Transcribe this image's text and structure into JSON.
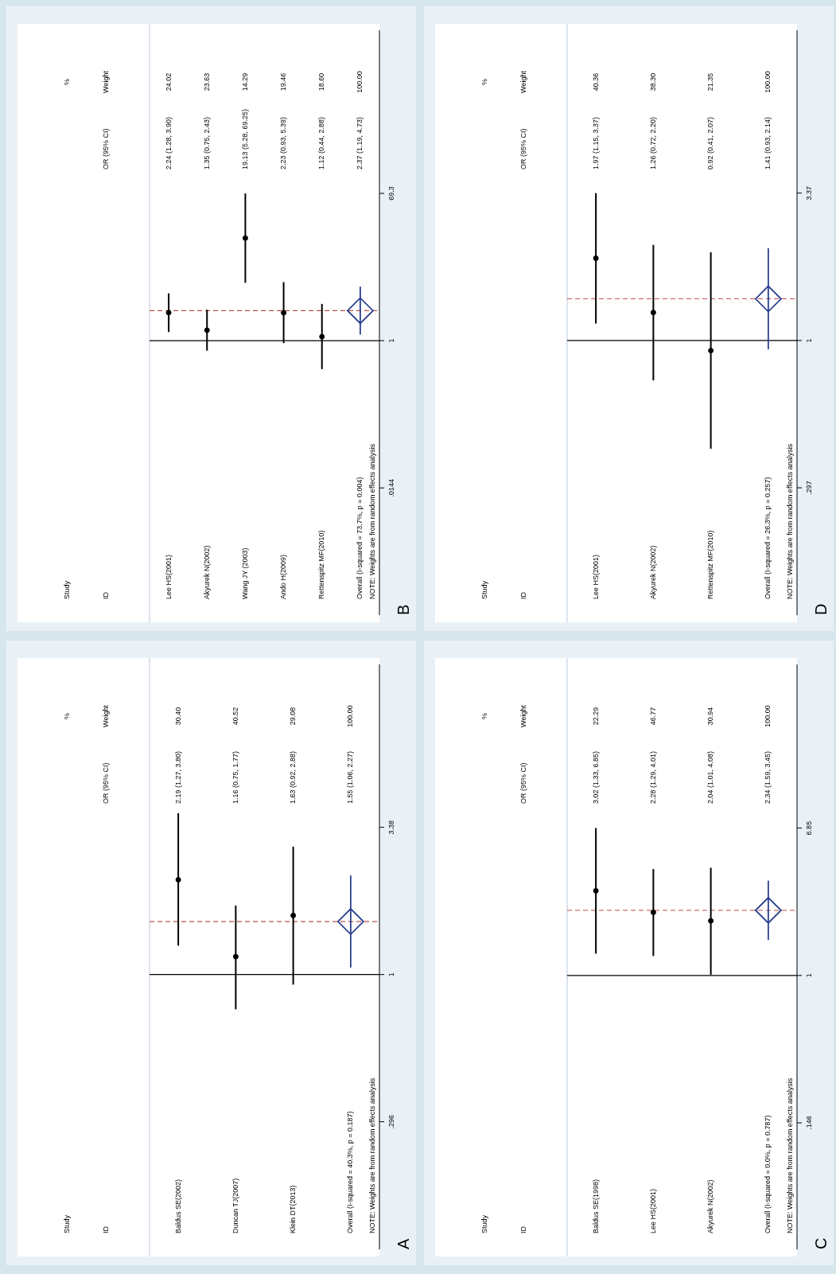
{
  "chart_data": [
    {
      "type": "scatter",
      "title": "A",
      "xlabel": "Study ID",
      "categories": [
        "Baldus SE(2002)",
        "Duncan TJ(2007)",
        "Klein DT(2013)",
        "Overall (I-squared = 40.3%, p = 0.187)"
      ],
      "series": [
        {
          "marker": "circle",
          "color": "#000000",
          "values": [
            2.19,
            1.16,
            1.63,
            null
          ],
          "errors": [
            [
              1.27,
              3.8
            ],
            [
              0.75,
              1.77
            ],
            [
              0.92,
              2.88
            ],
            null
          ]
        },
        {
          "marker": "diamond",
          "color": "#2b3f8f",
          "values": [
            null,
            null,
            null,
            1.55
          ],
          "errors": [
            null,
            null,
            null,
            [
              1.06,
              2.27
            ]
          ]
        }
      ],
      "log": "y",
      "ylim": [
        0.103,
        13.0
      ],
      "yticks": [
        {
          "value": 0.296,
          "label": ".296"
        },
        1,
        3.38
      ],
      "ref_lines": [
        {
          "axis": "y",
          "value": 1,
          "color": "#000000",
          "line_style": "solid"
        },
        {
          "axis": "y",
          "value": 1.55,
          "color": "#c0504d",
          "line_style": "dashed"
        }
      ],
      "annotations": [
        "OR (95% CI)",
        "% Weight",
        "NOTE: Weights are from random effects analysis",
        "2.19 (1.27, 3.80)",
        "1.16 (0.75, 1.77)",
        "1.63 (0.92, 2.88)",
        "1.55 (1.06, 2.27)",
        "30.40",
        "40.52",
        "29.08",
        "100.00"
      ]
    },
    {
      "type": "scatter",
      "title": "B",
      "xlabel": "Study ID",
      "categories": [
        "Lee HS(2001)",
        "Akyurek N(2002)",
        "Wang JY (2003)",
        "Ando H(2009)",
        "Rettenspitz MF(2010)",
        "Overall (I-squared = 73.7%, p = 0.004)"
      ],
      "series": [
        {
          "marker": "circle",
          "color": "#000000",
          "values": [
            2.24,
            1.35,
            19.13,
            2.23,
            1.12,
            null
          ],
          "errors": [
            [
              1.28,
              3.9
            ],
            [
              0.75,
              2.43
            ],
            [
              5.28,
              69.25
            ],
            [
              0.93,
              5.39
            ],
            [
              0.44,
              2.88
            ],
            null
          ]
        },
        {
          "marker": "diamond",
          "color": "#2b3f8f",
          "values": [
            null,
            null,
            null,
            null,
            null,
            2.37
          ],
          "errors": [
            null,
            null,
            null,
            null,
            null,
            [
              1.19,
              4.73
            ]
          ]
        }
      ],
      "log": "y",
      "ylim": [
        0.00037,
        7600
      ],
      "yticks": [
        {
          "value": 0.0144,
          "label": ".0144"
        },
        1,
        69.3
      ],
      "ref_lines": [
        {
          "axis": "y",
          "value": 1,
          "color": "#000000",
          "line_style": "solid"
        },
        {
          "axis": "y",
          "value": 2.37,
          "color": "#c0504d",
          "line_style": "dashed"
        }
      ],
      "annotations": [
        "OR (95% CI)",
        "% Weight",
        "NOTE: Weights are from random effects analysis",
        "2.24 (1.28, 3.90)",
        "1.35 (0.75, 2.43)",
        "19.13 (5.28, 69.25)",
        "2.23 (0.93, 5.39)",
        "1.12 (0.44, 2.88)",
        "2.37 (1.19, 4.73)",
        "24.02",
        "23.63",
        "14.29",
        "19.46",
        "18.60",
        "100.00"
      ]
    },
    {
      "type": "scatter",
      "title": "C",
      "xlabel": "Study ID",
      "categories": [
        "Baldus SE(1998)",
        "Lee HS(2001)",
        "Akyurek N(2002)",
        "Overall (I-squared = 0.0%, p = 0.787)"
      ],
      "series": [
        {
          "marker": "circle",
          "color": "#000000",
          "values": [
            3.02,
            2.28,
            2.04,
            null
          ],
          "errors": [
            [
              1.33,
              6.85
            ],
            [
              1.29,
              4.01
            ],
            [
              1.01,
              4.08
            ],
            null
          ]
        },
        {
          "marker": "diamond",
          "color": "#2b3f8f",
          "values": [
            null,
            null,
            null,
            2.34
          ],
          "errors": [
            null,
            null,
            null,
            [
              1.59,
              3.45
            ]
          ]
        }
      ],
      "log": "y",
      "ylim": [
        0.028,
        58
      ],
      "yticks": [
        {
          "value": 0.146,
          "label": ".146"
        },
        1,
        6.85
      ],
      "ref_lines": [
        {
          "axis": "y",
          "value": 1,
          "color": "#000000",
          "line_style": "solid"
        },
        {
          "axis": "y",
          "value": 2.34,
          "color": "#c0504d",
          "line_style": "dashed"
        }
      ],
      "annotations": [
        "OR (95% CI)",
        "% Weight",
        "NOTE: Weights are from random effects analysis",
        "3.02 (1.33, 6.85)",
        "2.28 (1.29, 4.01)",
        "2.04 (1.01, 4.08)",
        "2.34 (1.59, 3.45)",
        "22.29",
        "46.77",
        "30.94",
        "100.00"
      ]
    },
    {
      "type": "scatter",
      "title": "D",
      "xlabel": "Study ID",
      "categories": [
        "Lee HS(2001)",
        "Akyurek N(2002)",
        "Rettenspitz MF(2010)",
        "Overall (I-squared = 26.3%, p = 0.257)"
      ],
      "series": [
        {
          "marker": "circle",
          "color": "#000000",
          "values": [
            1.97,
            1.26,
            0.92,
            null
          ],
          "errors": [
            [
              1.15,
              3.37
            ],
            [
              0.72,
              2.2
            ],
            [
              0.41,
              2.07
            ],
            null
          ]
        },
        {
          "marker": "diamond",
          "color": "#2b3f8f",
          "values": [
            null,
            null,
            null,
            1.41
          ],
          "errors": [
            null,
            null,
            null,
            [
              0.93,
              2.14
            ]
          ]
        }
      ],
      "log": "y",
      "ylim": [
        0.104,
        12.9
      ],
      "yticks": [
        {
          "value": 0.297,
          "label": ".297"
        },
        1,
        3.37
      ],
      "ref_lines": [
        {
          "axis": "y",
          "value": 1,
          "color": "#000000",
          "line_style": "solid"
        },
        {
          "axis": "y",
          "value": 1.41,
          "color": "#c0504d",
          "line_style": "dashed"
        }
      ],
      "annotations": [
        "OR (95% CI)",
        "% Weight",
        "NOTE: Weights are from random effects analysis",
        "1.97 (1.15, 3.37)",
        "1.26 (0.72, 2.20)",
        "0.92 (0.41, 2.07)",
        "1.41 (0.93, 2.14)",
        "40.36",
        "38.30",
        "21.35",
        "100.00"
      ]
    }
  ]
}
